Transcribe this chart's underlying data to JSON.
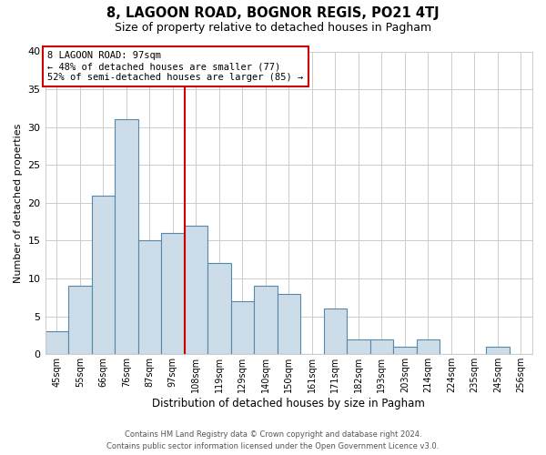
{
  "title": "8, LAGOON ROAD, BOGNOR REGIS, PO21 4TJ",
  "subtitle": "Size of property relative to detached houses in Pagham",
  "xlabel": "Distribution of detached houses by size in Pagham",
  "ylabel": "Number of detached properties",
  "bar_labels": [
    "45sqm",
    "55sqm",
    "66sqm",
    "76sqm",
    "87sqm",
    "97sqm",
    "108sqm",
    "119sqm",
    "129sqm",
    "140sqm",
    "150sqm",
    "161sqm",
    "171sqm",
    "182sqm",
    "193sqm",
    "203sqm",
    "214sqm",
    "224sqm",
    "235sqm",
    "245sqm",
    "256sqm"
  ],
  "bar_values": [
    3,
    9,
    21,
    31,
    15,
    16,
    17,
    12,
    7,
    9,
    8,
    0,
    6,
    2,
    2,
    1,
    2,
    0,
    0,
    1,
    0
  ],
  "bar_color": "#ccdce8",
  "bar_edge_color": "#5588aa",
  "vline_color": "#cc0000",
  "annotation_title": "8 LAGOON ROAD: 97sqm",
  "annotation_line1": "← 48% of detached houses are smaller (77)",
  "annotation_line2": "52% of semi-detached houses are larger (85) →",
  "annotation_box_edge": "#cc0000",
  "ylim": [
    0,
    40
  ],
  "yticks": [
    0,
    5,
    10,
    15,
    20,
    25,
    30,
    35,
    40
  ],
  "footer_line1": "Contains HM Land Registry data © Crown copyright and database right 2024.",
  "footer_line2": "Contains public sector information licensed under the Open Government Licence v3.0.",
  "background_color": "#ffffff",
  "grid_color": "#cccccc"
}
